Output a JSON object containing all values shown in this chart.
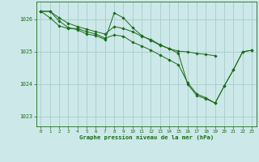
{
  "background_color": "#cce8e8",
  "grid_color": "#aacccc",
  "line_color": "#1a6b1a",
  "marker_color": "#1a6b1a",
  "xlabel": "Graphe pression niveau de la mer (hPa)",
  "xlim": [
    -0.5,
    23.5
  ],
  "ylim": [
    1022.7,
    1026.55
  ],
  "yticks": [
    1023,
    1024,
    1025,
    1026
  ],
  "xticks": [
    0,
    1,
    2,
    3,
    4,
    5,
    6,
    7,
    8,
    9,
    10,
    11,
    12,
    13,
    14,
    15,
    16,
    17,
    18,
    19,
    20,
    21,
    22,
    23
  ],
  "series": [
    [
      1026.25,
      1026.25,
      1025.95,
      1025.75,
      1025.68,
      1025.55,
      1025.5,
      1025.38,
      1026.2,
      1026.05,
      1025.75,
      1025.5,
      1025.35,
      1025.2,
      1025.1,
      1024.95,
      1024.0,
      1023.65,
      1023.55,
      1023.42,
      1023.95,
      1024.45,
      1025.0,
      1025.05
    ],
    [
      1026.25,
      1026.05,
      1025.8,
      1025.72,
      1025.72,
      1025.62,
      1025.55,
      1025.42,
      1025.52,
      1025.48,
      1025.3,
      1025.18,
      1025.05,
      1024.9,
      1024.75,
      1024.6,
      1024.05,
      1023.7,
      1023.58,
      1023.42,
      1023.95,
      1024.45,
      1025.0,
      1025.05
    ],
    [
      1026.25,
      1026.25,
      1026.05,
      1025.88,
      1025.78,
      1025.7,
      1025.62,
      1025.55,
      1025.78,
      1025.72,
      1025.62,
      1025.48,
      1025.38,
      1025.22,
      1025.1,
      1025.02,
      1025.0,
      1024.95,
      1024.92,
      1024.88,
      null,
      null,
      null,
      null
    ]
  ]
}
